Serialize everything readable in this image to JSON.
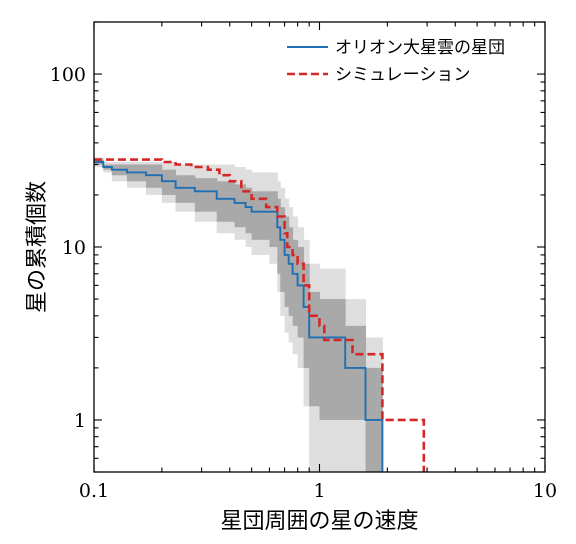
{
  "chart_data": {
    "type": "line",
    "xlabel": "星団周囲の星の速度",
    "ylabel": "星の累積個数",
    "xscale": "log",
    "yscale": "log",
    "xlim": [
      0.1,
      10
    ],
    "ylim": [
      0.5,
      200
    ],
    "x_ticks": [
      {
        "value": 0.1,
        "label": "0.1"
      },
      {
        "value": 1,
        "label": "1"
      },
      {
        "value": 10,
        "label": "10"
      }
    ],
    "y_ticks": [
      {
        "value": 1,
        "label": "1"
      },
      {
        "value": 10,
        "label": "10"
      },
      {
        "value": 100,
        "label": "100"
      }
    ],
    "legend_position": "top-right",
    "series": [
      {
        "name": "オリオン大星雲の星団",
        "color": "#1f6fb2",
        "style": "solid-step",
        "x": [
          0.1,
          0.11,
          0.12,
          0.14,
          0.17,
          0.2,
          0.23,
          0.28,
          0.35,
          0.42,
          0.47,
          0.5,
          0.6,
          0.65,
          0.67,
          0.7,
          0.73,
          0.76,
          0.8,
          0.85,
          0.9,
          1.0,
          1.3,
          1.6,
          1.9
        ],
        "y": [
          31,
          29,
          28,
          27,
          26,
          24,
          22,
          21,
          19,
          18,
          17,
          16,
          16,
          13,
          11,
          9,
          8,
          7,
          6,
          4.5,
          3,
          3,
          2,
          1,
          0.5
        ],
        "band_inner": {
          "color": "#a9a9a9",
          "lower": [
            30,
            28,
            26,
            24,
            22,
            20,
            18,
            16,
            14,
            13,
            12,
            11,
            10,
            7,
            5.5,
            4.5,
            4,
            3.5,
            3,
            2,
            1.2,
            1,
            1,
            0.5,
            0.5
          ],
          "upper": [
            32,
            30,
            30,
            30,
            30,
            28,
            26,
            25,
            24,
            23,
            22,
            21,
            21,
            19,
            17,
            15,
            13,
            11,
            10,
            8,
            5.5,
            5,
            3.5,
            2,
            0.5
          ]
        },
        "band_outer": {
          "color": "#dedede",
          "lower": [
            29,
            27,
            24,
            22,
            20,
            18,
            16,
            14,
            12,
            11,
            10,
            9,
            8,
            5.5,
            4,
            3.2,
            2.8,
            2.4,
            2,
            1.2,
            0.5,
            0.5,
            0.5,
            0.5,
            0.5
          ],
          "upper": [
            33,
            31,
            31,
            31,
            31,
            31,
            30,
            30,
            30,
            29,
            28,
            27,
            27,
            24,
            22,
            19,
            17,
            15,
            13,
            11,
            8,
            7.5,
            5,
            3,
            0.5
          ]
        }
      },
      {
        "name": "シミュレーション",
        "color": "#d62728",
        "style": "dashed-step",
        "x": [
          0.1,
          0.18,
          0.2,
          0.23,
          0.27,
          0.32,
          0.36,
          0.4,
          0.45,
          0.5,
          0.58,
          0.65,
          0.7,
          0.72,
          0.76,
          0.8,
          0.85,
          0.9,
          1.0,
          1.05,
          1.4,
          1.9,
          2.9
        ],
        "y": [
          32,
          32,
          31,
          30,
          29,
          28,
          26,
          24,
          21,
          19,
          17,
          15,
          12,
          10,
          9,
          8,
          6,
          4,
          3.5,
          2.9,
          2.4,
          1,
          0.5
        ]
      }
    ]
  }
}
